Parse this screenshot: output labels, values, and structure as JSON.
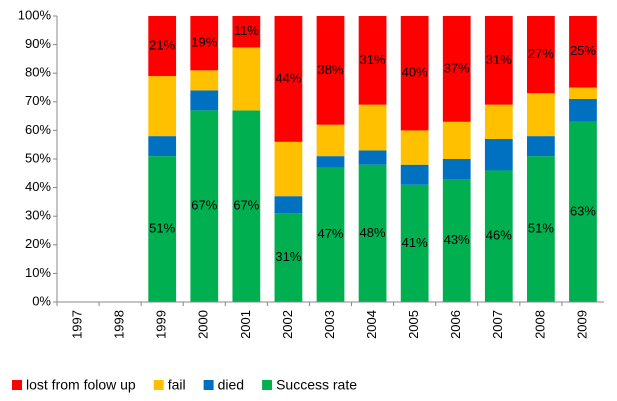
{
  "chart_data": {
    "type": "stacked_bar",
    "categories": [
      "1997",
      "1998",
      "1999",
      "2000",
      "2001",
      "2002",
      "2003",
      "2004",
      "2005",
      "2006",
      "2007",
      "2008",
      "2009"
    ],
    "series": [
      {
        "name": "lost from folow up",
        "color": "#ff0000",
        "values": [
          null,
          null,
          21,
          19,
          11,
          44,
          38,
          31,
          40,
          37,
          31,
          27,
          25
        ],
        "value_labels": [
          null,
          null,
          "21%",
          "19%",
          "11%",
          "44%",
          "38%",
          "31%",
          "40%",
          "37%",
          "31%",
          "27%",
          "25%"
        ]
      },
      {
        "name": "fail",
        "color": "#ffc000",
        "values": [
          null,
          null,
          21,
          7,
          22,
          19,
          11,
          16,
          12,
          13,
          12,
          15,
          4
        ]
      },
      {
        "name": "died",
        "color": "#0070c0",
        "values": [
          null,
          null,
          7,
          7,
          0,
          6,
          4,
          5,
          7,
          7,
          11,
          7,
          8
        ]
      },
      {
        "name": "Success rate",
        "color": "#00b050",
        "values": [
          null,
          null,
          51,
          67,
          67,
          31,
          47,
          48,
          41,
          43,
          46,
          51,
          63
        ],
        "value_labels": [
          null,
          null,
          "51%",
          "67%",
          "67%",
          "31%",
          "47%",
          "48%",
          "41%",
          "43%",
          "46%",
          "51%",
          "63%"
        ]
      }
    ],
    "ylim": [
      0,
      100
    ],
    "yticks": [
      {
        "value": 0,
        "label": "0%"
      },
      {
        "value": 10,
        "label": "10%"
      },
      {
        "value": 20,
        "label": "20%"
      },
      {
        "value": 30,
        "label": "30%"
      },
      {
        "value": 40,
        "label": "40%"
      },
      {
        "value": 50,
        "label": "50%"
      },
      {
        "value": 60,
        "label": "60%"
      },
      {
        "value": 70,
        "label": "70%"
      },
      {
        "value": 80,
        "label": "80%"
      },
      {
        "value": 90,
        "label": "90%"
      },
      {
        "value": 100,
        "label": "100%"
      }
    ],
    "legend": "bottom"
  }
}
